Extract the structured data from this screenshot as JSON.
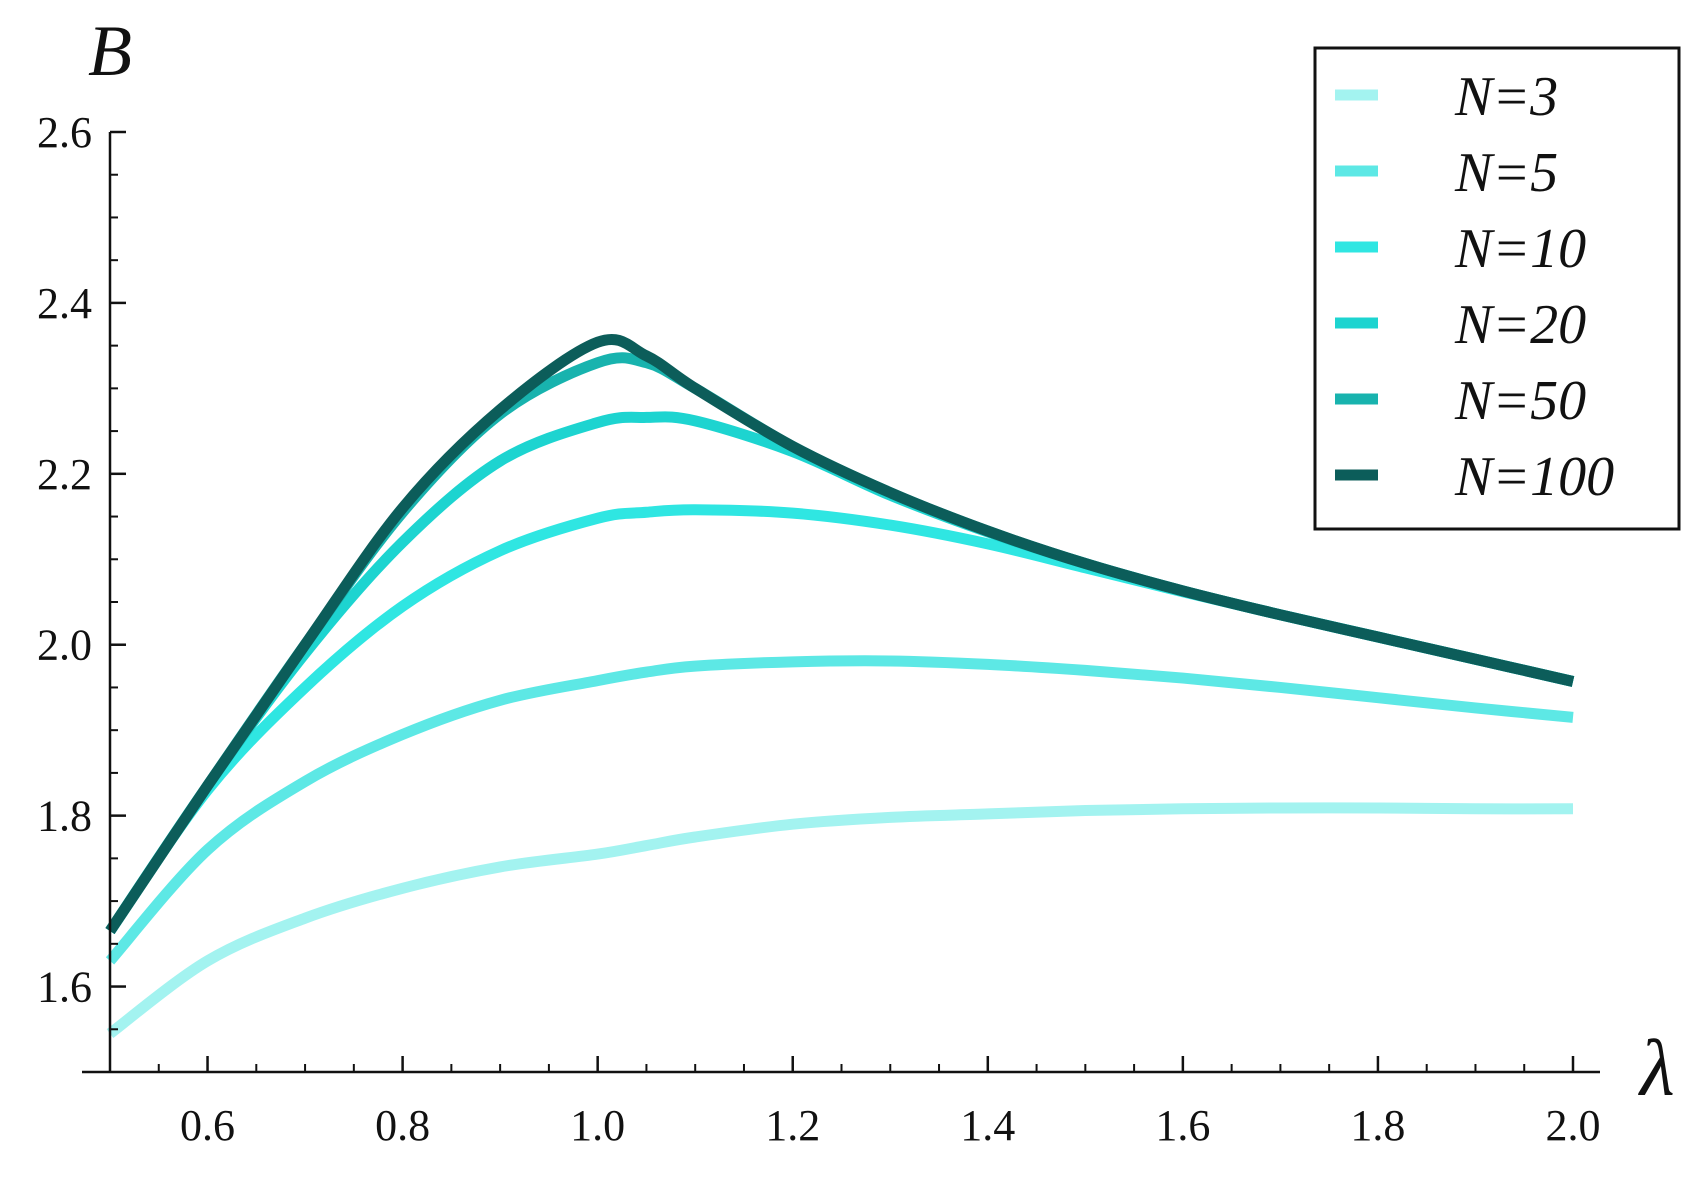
{
  "chart_data": {
    "type": "line",
    "title": "",
    "xlabel": "λ",
    "ylabel": "B",
    "xlim": [
      0.5,
      2.0
    ],
    "ylim": [
      1.5,
      2.6
    ],
    "grid": false,
    "legend_position": "top-right",
    "x_ticks": [
      0.6,
      0.8,
      1.0,
      1.2,
      1.4,
      1.6,
      1.8,
      2.0
    ],
    "x_tick_labels": [
      "0.6",
      "0.8",
      "1.0",
      "1.2",
      "1.4",
      "1.6",
      "1.8",
      "2.0"
    ],
    "y_ticks": [
      1.6,
      1.8,
      2.0,
      2.2,
      2.4,
      2.6
    ],
    "y_tick_labels": [
      "1.6",
      "1.8",
      "2.0",
      "2.2",
      "2.4",
      "2.6"
    ],
    "x": [
      0.5,
      0.6,
      0.7,
      0.8,
      0.9,
      1.0,
      1.05,
      1.1,
      1.2,
      1.3,
      1.4,
      1.5,
      1.6,
      1.7,
      1.8,
      1.9,
      2.0
    ],
    "series": [
      {
        "name": "N=3",
        "color": "#a3f3f0",
        "values": [
          1.545,
          1.63,
          1.68,
          1.715,
          1.74,
          1.755,
          1.765,
          1.775,
          1.79,
          1.798,
          1.802,
          1.806,
          1.808,
          1.809,
          1.809,
          1.808,
          1.808
        ]
      },
      {
        "name": "N=5",
        "color": "#5de8e5",
        "values": [
          1.63,
          1.76,
          1.84,
          1.895,
          1.935,
          1.958,
          1.968,
          1.975,
          1.98,
          1.981,
          1.977,
          1.97,
          1.961,
          1.95,
          1.938,
          1.926,
          1.915
        ]
      },
      {
        "name": "N=10",
        "color": "#2fe6e2",
        "values": [
          1.665,
          1.83,
          1.95,
          2.045,
          2.11,
          2.148,
          2.155,
          2.158,
          2.154,
          2.14,
          2.118,
          2.09,
          2.062,
          2.035,
          2.009,
          1.983,
          1.957
        ]
      },
      {
        "name": "N=20",
        "color": "#1dd4d0",
        "values": [
          1.665,
          1.835,
          1.99,
          2.12,
          2.215,
          2.26,
          2.266,
          2.262,
          2.226,
          2.175,
          2.132,
          2.095,
          2.063,
          2.035,
          2.009,
          1.983,
          1.957
        ]
      },
      {
        "name": "N=50",
        "color": "#18b3ae",
        "values": [
          1.665,
          1.835,
          2.0,
          2.155,
          2.27,
          2.33,
          2.33,
          2.3,
          2.232,
          2.178,
          2.133,
          2.095,
          2.063,
          2.035,
          2.009,
          1.983,
          1.957
        ]
      },
      {
        "name": "N=100",
        "color": "#0c5d5a",
        "values": [
          1.665,
          1.835,
          2.0,
          2.16,
          2.275,
          2.354,
          2.338,
          2.3,
          2.232,
          2.178,
          2.133,
          2.095,
          2.063,
          2.035,
          2.009,
          1.983,
          1.957
        ]
      }
    ]
  }
}
